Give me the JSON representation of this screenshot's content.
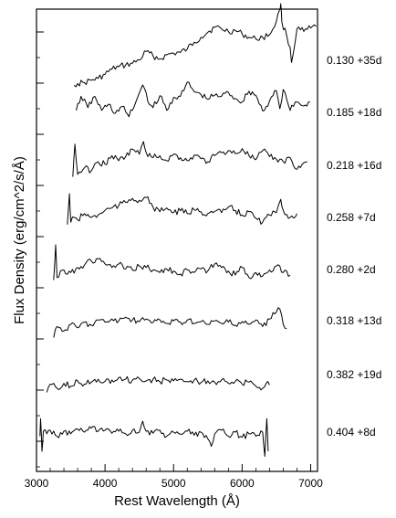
{
  "chart_data": {
    "type": "line",
    "title": "",
    "xlabel": "Rest Wavelength (Å)",
    "ylabel": "Flux Density (erg/cm^2/s/Å)",
    "xlim": [
      3000,
      7100
    ],
    "xticks": [
      3000,
      4000,
      5000,
      6000,
      7000
    ],
    "y_tick_labels_shown": false,
    "grid": false,
    "legend": "none",
    "series": [
      {
        "name": "0.130 +35d",
        "x": [
          3550,
          3600,
          3700,
          3800,
          3900,
          4000,
          4100,
          4200,
          4300,
          4400,
          4500,
          4600,
          4700,
          4800,
          4900,
          5000,
          5100,
          5200,
          5300,
          5400,
          5500,
          5600,
          5700,
          5800,
          5900,
          6000,
          6100,
          6200,
          6300,
          6400,
          6500,
          6550,
          6563,
          6580,
          6650,
          6700,
          6720,
          6800,
          6900,
          7000,
          7080
        ],
        "y": [
          0.03,
          0.05,
          0.06,
          0.09,
          0.11,
          0.16,
          0.22,
          0.25,
          0.27,
          0.29,
          0.33,
          0.43,
          0.38,
          0.34,
          0.39,
          0.41,
          0.42,
          0.46,
          0.54,
          0.6,
          0.66,
          0.72,
          0.7,
          0.67,
          0.68,
          0.64,
          0.6,
          0.58,
          0.6,
          0.63,
          0.79,
          0.93,
          1.0,
          0.78,
          0.62,
          0.48,
          0.3,
          0.7,
          0.67,
          0.71,
          0.73
        ]
      },
      {
        "name": "0.185 +18d",
        "x": [
          3580,
          3650,
          3750,
          3850,
          3950,
          4050,
          4150,
          4250,
          4350,
          4450,
          4500,
          4550,
          4600,
          4650,
          4700,
          4800,
          4900,
          5000,
          5100,
          5150,
          5200,
          5300,
          5400,
          5500,
          5600,
          5700,
          5800,
          5900,
          6000,
          6100,
          6200,
          6300,
          6400,
          6500,
          6550,
          6600,
          6650,
          6700,
          6800,
          6900,
          6990
        ],
        "y": [
          0.55,
          0.8,
          0.6,
          0.8,
          0.55,
          0.66,
          0.5,
          0.62,
          0.44,
          0.7,
          0.86,
          1.0,
          0.86,
          0.65,
          0.6,
          0.81,
          0.55,
          0.78,
          0.8,
          0.9,
          1.05,
          0.88,
          0.83,
          0.75,
          0.82,
          0.8,
          0.87,
          0.76,
          0.7,
          0.89,
          0.82,
          0.54,
          0.72,
          0.9,
          0.58,
          0.92,
          0.75,
          0.55,
          0.7,
          0.63,
          0.7
        ]
      },
      {
        "name": "0.218 +16d",
        "x": [
          3530,
          3560,
          3600,
          3700,
          3800,
          3900,
          4000,
          4100,
          4200,
          4300,
          4400,
          4500,
          4560,
          4600,
          4700,
          4800,
          4900,
          5000,
          5100,
          5200,
          5300,
          5400,
          5500,
          5600,
          5700,
          5800,
          5900,
          6000,
          6100,
          6200,
          6300,
          6400,
          6500,
          6600,
          6700,
          6800,
          6900,
          6950
        ],
        "y": [
          0.3,
          0.95,
          0.35,
          0.48,
          0.42,
          0.6,
          0.55,
          0.72,
          0.62,
          0.7,
          0.85,
          0.75,
          1.0,
          0.78,
          0.68,
          0.72,
          0.62,
          0.75,
          0.68,
          0.62,
          0.73,
          0.66,
          0.6,
          0.72,
          0.78,
          0.82,
          0.76,
          0.86,
          0.72,
          0.64,
          0.82,
          0.7,
          0.65,
          0.6,
          0.68,
          0.45,
          0.58,
          0.6
        ]
      },
      {
        "name": "0.258 +7d",
        "x": [
          3450,
          3480,
          3500,
          3550,
          3600,
          3700,
          3800,
          3900,
          4000,
          4100,
          4200,
          4300,
          4400,
          4500,
          4600,
          4700,
          4800,
          4900,
          5000,
          5100,
          5200,
          5300,
          5400,
          5500,
          5600,
          5700,
          5800,
          5900,
          6000,
          6100,
          6200,
          6300,
          6400,
          6500,
          6563,
          6600,
          6700,
          6800
        ],
        "y": [
          0.35,
          1.0,
          0.4,
          0.5,
          0.45,
          0.58,
          0.5,
          0.55,
          0.65,
          0.7,
          0.75,
          0.82,
          0.9,
          0.86,
          0.92,
          0.72,
          0.62,
          0.7,
          0.6,
          0.64,
          0.58,
          0.66,
          0.62,
          0.58,
          0.63,
          0.6,
          0.72,
          0.65,
          0.55,
          0.62,
          0.48,
          0.4,
          0.55,
          0.6,
          0.88,
          0.65,
          0.5,
          0.58
        ]
      },
      {
        "name": "0.280 +2d",
        "x": [
          3250,
          3280,
          3300,
          3400,
          3500,
          3600,
          3700,
          3800,
          3900,
          4000,
          4100,
          4200,
          4300,
          4400,
          4500,
          4600,
          4700,
          4800,
          4900,
          5000,
          5100,
          5200,
          5300,
          5400,
          5500,
          5600,
          5700,
          5800,
          5900,
          6000,
          6100,
          6200,
          6300,
          6400,
          6500,
          6600,
          6700
        ],
        "y": [
          0.3,
          1.0,
          0.35,
          0.5,
          0.45,
          0.55,
          0.6,
          0.68,
          0.72,
          0.62,
          0.55,
          0.62,
          0.52,
          0.5,
          0.58,
          0.55,
          0.5,
          0.45,
          0.52,
          0.48,
          0.42,
          0.5,
          0.45,
          0.52,
          0.48,
          0.62,
          0.55,
          0.48,
          0.4,
          0.55,
          0.35,
          0.45,
          0.38,
          0.5,
          0.58,
          0.45,
          0.4
        ]
      },
      {
        "name": "0.318 +13d",
        "x": [
          3250,
          3300,
          3400,
          3500,
          3600,
          3700,
          3800,
          3900,
          4000,
          4100,
          4200,
          4300,
          4400,
          4500,
          4600,
          4700,
          4800,
          4900,
          5000,
          5100,
          5200,
          5300,
          5400,
          5500,
          5600,
          5700,
          5800,
          5900,
          6000,
          6100,
          6200,
          6300,
          6400,
          6500,
          6550,
          6600,
          6650
        ],
        "y": [
          0.2,
          0.45,
          0.35,
          0.5,
          0.42,
          0.55,
          0.48,
          0.6,
          0.55,
          0.62,
          0.58,
          0.66,
          0.6,
          0.56,
          0.62,
          0.54,
          0.6,
          0.52,
          0.58,
          0.55,
          0.6,
          0.52,
          0.56,
          0.5,
          0.58,
          0.52,
          0.55,
          0.48,
          0.56,
          0.5,
          0.6,
          0.45,
          0.62,
          0.78,
          0.85,
          0.5,
          0.4
        ]
      },
      {
        "name": "0.382 +19d",
        "x": [
          3150,
          3200,
          3300,
          3400,
          3500,
          3600,
          3700,
          3800,
          3900,
          4000,
          4100,
          4200,
          4300,
          4400,
          4500,
          4600,
          4700,
          4800,
          4900,
          5000,
          5100,
          5200,
          5300,
          5400,
          5500,
          5600,
          5700,
          5800,
          5900,
          6000,
          6100,
          6200,
          6300,
          6350,
          6400
        ],
        "y": [
          0.3,
          0.5,
          0.4,
          0.52,
          0.45,
          0.58,
          0.5,
          0.55,
          0.62,
          0.57,
          0.6,
          0.66,
          0.62,
          0.6,
          0.64,
          0.58,
          0.62,
          0.56,
          0.6,
          0.58,
          0.62,
          0.56,
          0.6,
          0.54,
          0.58,
          0.55,
          0.6,
          0.52,
          0.57,
          0.5,
          0.55,
          0.45,
          0.4,
          0.52,
          0.48
        ]
      },
      {
        "name": "0.404 +8d",
        "x": [
          3050,
          3060,
          3080,
          3100,
          3150,
          3200,
          3300,
          3400,
          3500,
          3600,
          3700,
          3800,
          3900,
          4000,
          4100,
          4200,
          4300,
          4400,
          4500,
          4550,
          4600,
          4700,
          4800,
          4900,
          5000,
          5100,
          5200,
          5300,
          5400,
          5500,
          5550,
          5600,
          5700,
          5800,
          5900,
          6000,
          6100,
          6200,
          6300,
          6330,
          6360,
          6380
        ],
        "y": [
          0.5,
          0.85,
          0.2,
          0.6,
          0.55,
          0.62,
          0.5,
          0.6,
          0.55,
          0.64,
          0.58,
          0.66,
          0.6,
          0.62,
          0.56,
          0.6,
          0.55,
          0.62,
          0.58,
          0.8,
          0.6,
          0.56,
          0.62,
          0.5,
          0.58,
          0.54,
          0.6,
          0.52,
          0.58,
          0.45,
          0.3,
          0.55,
          0.62,
          0.5,
          0.58,
          0.48,
          0.55,
          0.5,
          0.58,
          0.1,
          0.85,
          0.2
        ]
      }
    ]
  }
}
